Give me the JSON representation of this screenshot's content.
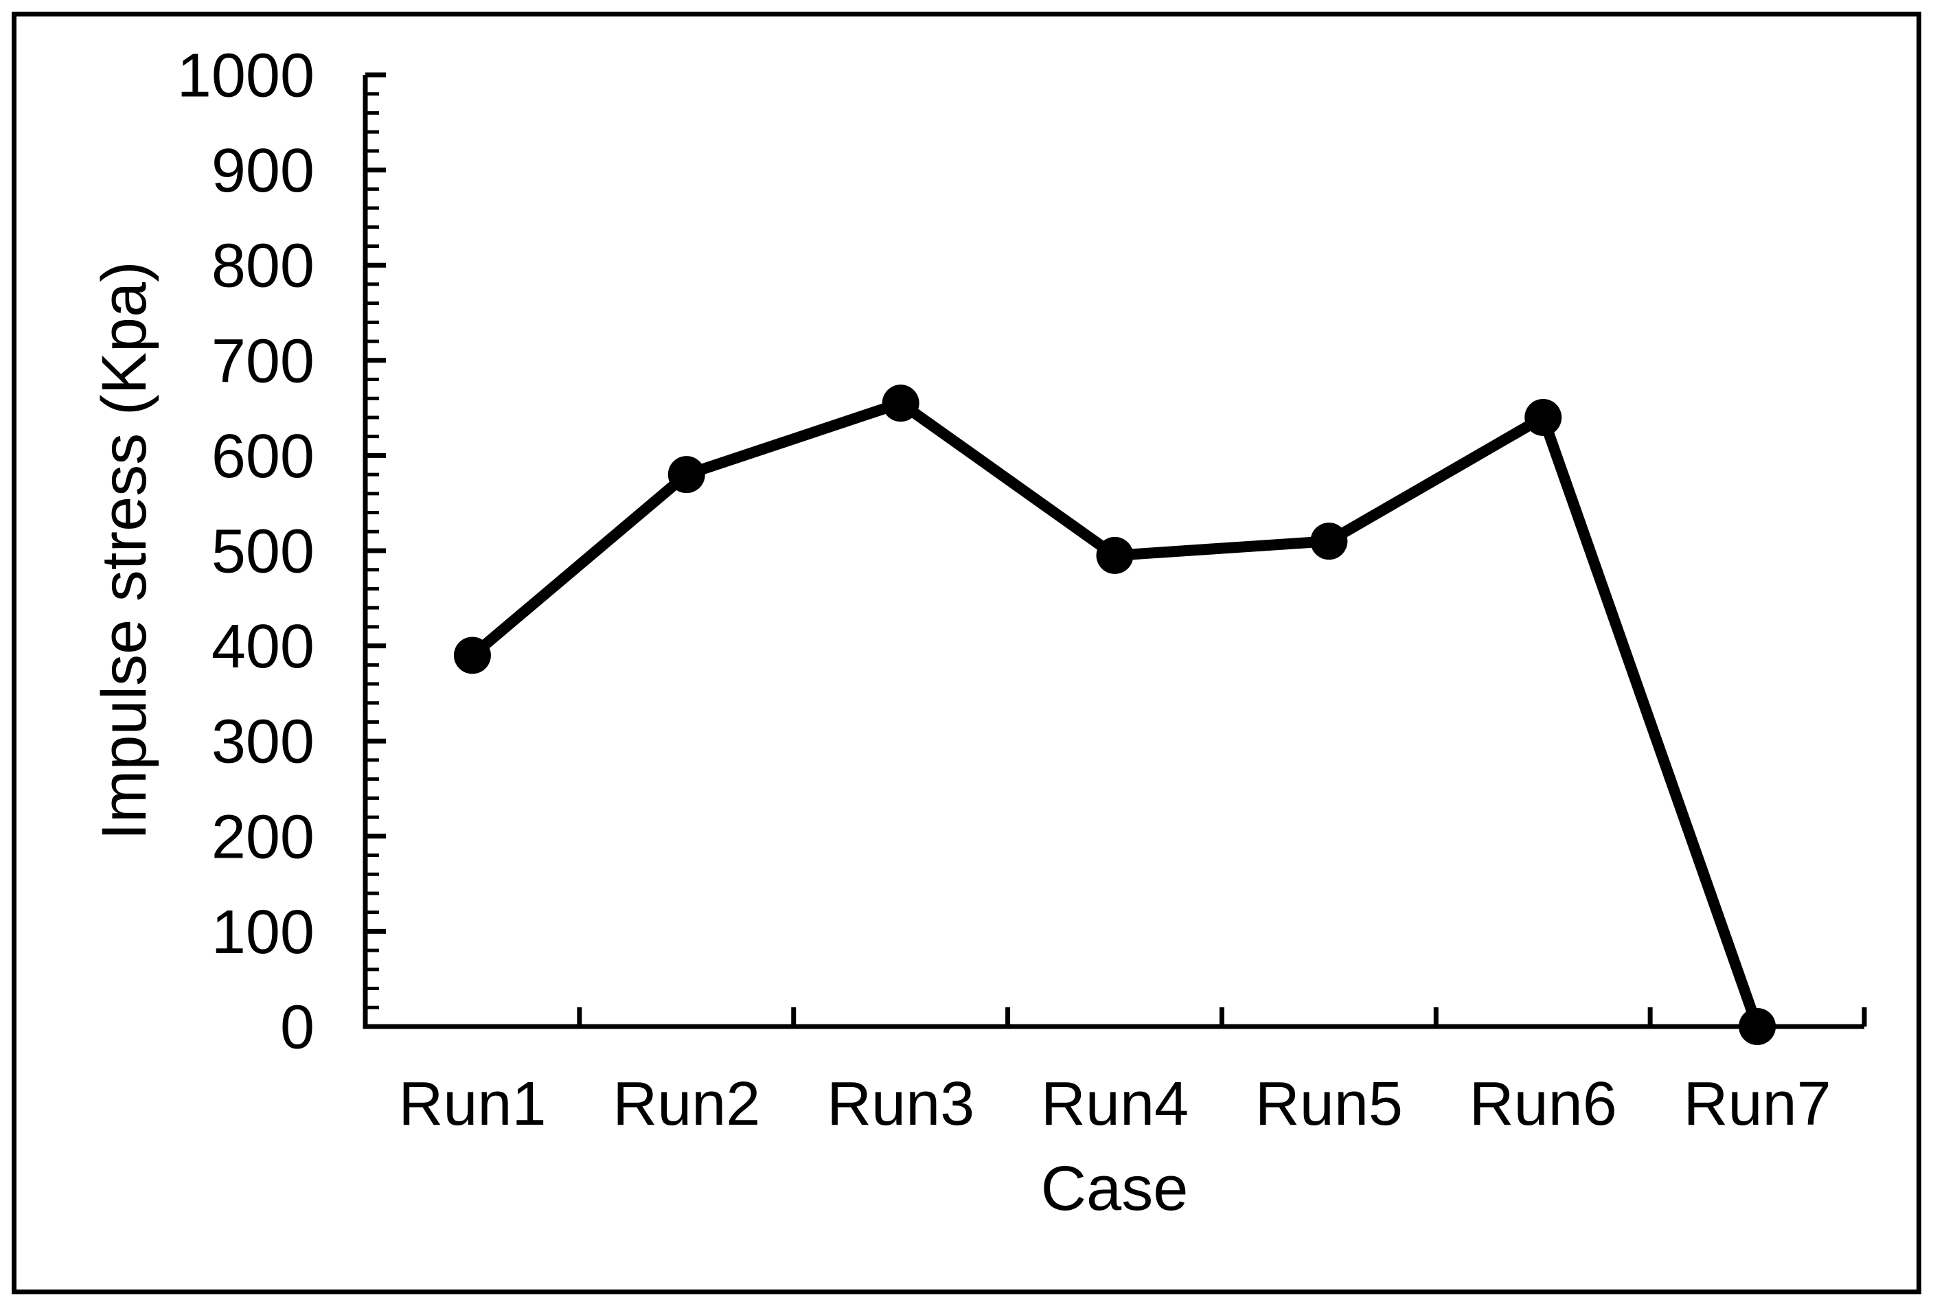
{
  "figure": {
    "background": "#ffffff",
    "border_color": "#000000",
    "ink_color": "#000000"
  },
  "chart_data": {
    "type": "line",
    "title": "",
    "categories": [
      "Run1",
      "Run2",
      "Run3",
      "Run4",
      "Run5",
      "Run6",
      "Run7"
    ],
    "values": [
      390,
      580,
      655,
      495,
      510,
      640,
      0
    ],
    "xlabel": "Case",
    "ylabel": "Impulse stress (Kpa)",
    "ylim": [
      0,
      1000
    ],
    "y_major_step": 100,
    "y_minor_step": 20,
    "y_tick_labels": [
      "0",
      "100",
      "200",
      "300",
      "400",
      "500",
      "600",
      "700",
      "800",
      "900",
      "1000"
    ],
    "grid": false,
    "legend_position": "none",
    "line_color": "#000000",
    "marker_shape": "circle",
    "marker_color": "#000000"
  }
}
